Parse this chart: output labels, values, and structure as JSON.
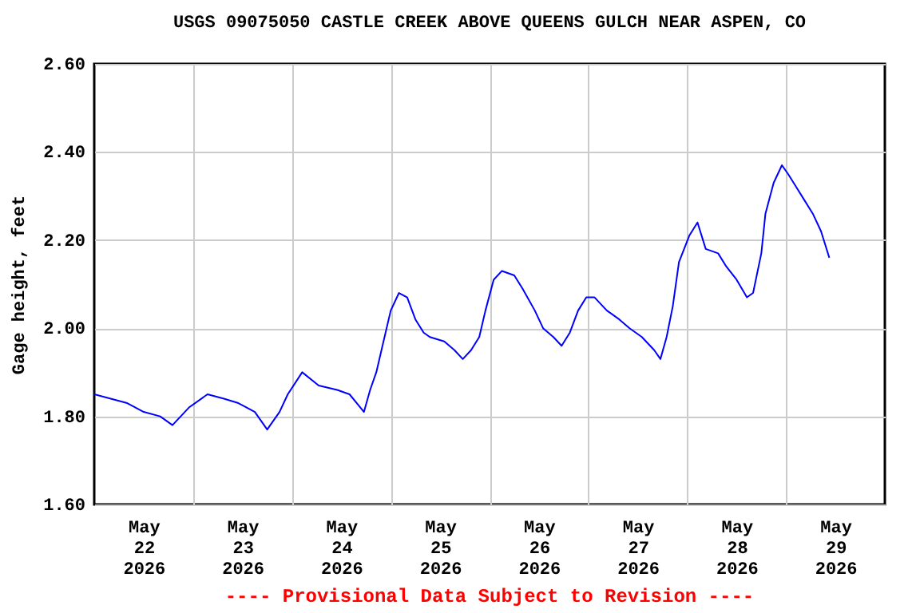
{
  "chart_data": {
    "type": "line",
    "title": "USGS 09075050 CASTLE CREEK ABOVE QUEENS GULCH NEAR ASPEN, CO",
    "ylabel": "Gage height, feet",
    "annotations": [
      "---- Provisional Data Subject to Revision ----"
    ],
    "x": [
      "2026-05-22T00:00",
      "2026-05-22T04:00",
      "2026-05-22T08:00",
      "2026-05-22T12:00",
      "2026-05-22T16:00",
      "2026-05-22T19:00",
      "2026-05-22T23:00",
      "2026-05-23T03:30",
      "2026-05-23T07:30",
      "2026-05-23T11:00",
      "2026-05-23T15:00",
      "2026-05-23T18:00",
      "2026-05-23T21:00",
      "2026-05-23T23:00",
      "2026-05-24T02:30",
      "2026-05-24T06:30",
      "2026-05-24T11:00",
      "2026-05-24T14:00",
      "2026-05-24T17:30",
      "2026-05-24T19:00",
      "2026-05-24T20:30",
      "2026-05-24T22:00",
      "2026-05-25T00:00",
      "2026-05-25T02:00",
      "2026-05-25T04:00",
      "2026-05-25T06:00",
      "2026-05-25T08:00",
      "2026-05-25T09:30",
      "2026-05-25T13:00",
      "2026-05-25T15:30",
      "2026-05-25T17:30",
      "2026-05-25T19:30",
      "2026-05-25T21:30",
      "2026-05-25T23:00",
      "2026-05-26T01:00",
      "2026-05-26T03:00",
      "2026-05-26T06:00",
      "2026-05-26T08:00",
      "2026-05-26T11:00",
      "2026-05-26T13:00",
      "2026-05-26T15:30",
      "2026-05-26T17:30",
      "2026-05-26T19:30",
      "2026-05-26T21:30",
      "2026-05-26T23:30",
      "2026-05-27T01:30",
      "2026-05-27T04:30",
      "2026-05-27T07:30",
      "2026-05-27T10:00",
      "2026-05-27T13:00",
      "2026-05-27T16:00",
      "2026-05-27T17:30",
      "2026-05-27T19:00",
      "2026-05-27T20:30",
      "2026-05-27T22:00",
      "2026-05-28T00:30",
      "2026-05-28T02:30",
      "2026-05-28T04:30",
      "2026-05-28T07:30",
      "2026-05-28T09:30",
      "2026-05-28T12:00",
      "2026-05-28T14:30",
      "2026-05-28T16:00",
      "2026-05-28T18:00",
      "2026-05-28T19:00",
      "2026-05-28T21:00",
      "2026-05-28T23:00",
      "2026-05-29T00:30",
      "2026-05-29T02:30",
      "2026-05-29T04:30",
      "2026-05-29T06:30",
      "2026-05-29T08:30",
      "2026-05-29T09:30",
      "2026-05-29T10:30"
    ],
    "values": [
      1.85,
      1.84,
      1.83,
      1.81,
      1.8,
      1.78,
      1.82,
      1.85,
      1.84,
      1.83,
      1.81,
      1.77,
      1.81,
      1.85,
      1.9,
      1.87,
      1.86,
      1.85,
      1.81,
      1.86,
      1.9,
      1.96,
      2.04,
      2.08,
      2.07,
      2.02,
      1.99,
      1.98,
      1.97,
      1.95,
      1.93,
      1.95,
      1.98,
      2.04,
      2.11,
      2.13,
      2.12,
      2.09,
      2.04,
      2.0,
      1.98,
      1.96,
      1.99,
      2.04,
      2.07,
      2.07,
      2.04,
      2.02,
      2.0,
      1.98,
      1.95,
      1.93,
      1.98,
      2.05,
      2.15,
      2.21,
      2.24,
      2.18,
      2.17,
      2.14,
      2.11,
      2.07,
      2.08,
      2.17,
      2.26,
      2.33,
      2.37,
      2.35,
      2.32,
      2.29,
      2.26,
      2.22,
      2.19,
      2.16
    ],
    "color": "#0000ff",
    "xlim": [
      "2026-05-22T00:00",
      "2026-05-30T00:00"
    ],
    "xticks": [
      {
        "value": "2026-05-22T12:00",
        "label": "May 22 2026"
      },
      {
        "value": "2026-05-23T00:00",
        "label": null
      },
      {
        "value": "2026-05-23T12:00",
        "label": "May 23 2026"
      },
      {
        "value": "2026-05-24T00:00",
        "label": null
      },
      {
        "value": "2026-05-24T12:00",
        "label": "May 24 2026"
      },
      {
        "value": "2026-05-25T00:00",
        "label": null
      },
      {
        "value": "2026-05-25T12:00",
        "label": "May 25 2026"
      },
      {
        "value": "2026-05-26T00:00",
        "label": null
      },
      {
        "value": "2026-05-26T12:00",
        "label": "May 26 2026"
      },
      {
        "value": "2026-05-27T00:00",
        "label": null
      },
      {
        "value": "2026-05-27T12:00",
        "label": "May 27 2026"
      },
      {
        "value": "2026-05-28T00:00",
        "label": null
      },
      {
        "value": "2026-05-28T12:00",
        "label": "May 28 2026"
      },
      {
        "value": "2026-05-29T00:00",
        "label": null
      },
      {
        "value": "2026-05-29T12:00",
        "label": "May 29 2026"
      }
    ],
    "ylim": [
      1.6,
      2.6
    ],
    "yticks": [
      {
        "value": 1.6,
        "label": "1.60"
      },
      {
        "value": 1.8,
        "label": "1.80"
      },
      {
        "value": 2.0,
        "label": "2.00"
      },
      {
        "value": 2.2,
        "label": "2.20"
      },
      {
        "value": 2.4,
        "label": "2.40"
      },
      {
        "value": 2.6,
        "label": "2.60"
      }
    ],
    "grid": true
  }
}
